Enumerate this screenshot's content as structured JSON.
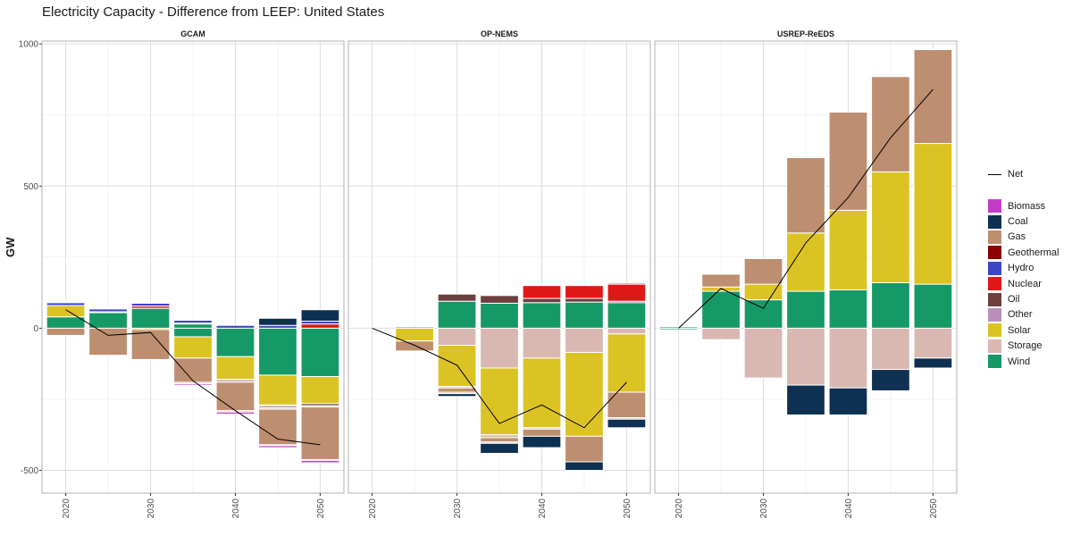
{
  "title": "Electricity Capacity - Difference from LEEP: United States",
  "chart_data": {
    "type": "bar",
    "stacked": true,
    "ylabel": "GW",
    "right_strip": "ww",
    "ylim": [
      -580,
      1010
    ],
    "yticks": [
      -500,
      0,
      500,
      1000
    ],
    "xticks": [
      2020,
      2030,
      2040,
      2050
    ],
    "grid": true,
    "legend_position": "right",
    "line_legend": "Net",
    "technologies": [
      {
        "name": "Biomass",
        "color": "#C23CC7"
      },
      {
        "name": "Coal",
        "color": "#0E3051"
      },
      {
        "name": "Gas",
        "color": "#BD8E70"
      },
      {
        "name": "Geothermal",
        "color": "#8B0000"
      },
      {
        "name": "Hydro",
        "color": "#3C45C3"
      },
      {
        "name": "Nuclear",
        "color": "#E01717"
      },
      {
        "name": "Oil",
        "color": "#6E3F3F"
      },
      {
        "name": "Other",
        "color": "#B88FBB"
      },
      {
        "name": "Solar",
        "color": "#DBC323"
      },
      {
        "name": "Storage",
        "color": "#D9B8B2"
      },
      {
        "name": "Wind",
        "color": "#159966"
      }
    ],
    "panels": [
      {
        "name": "GCAM",
        "years": [
          2020,
          2025,
          2030,
          2035,
          2040,
          2045,
          2050
        ],
        "net": [
          65,
          -25,
          -15,
          -185,
          -290,
          -390,
          -410
        ],
        "stacks": [
          {
            "pos": [
              [
                "Wind",
                40
              ],
              [
                "Solar",
                40
              ],
              [
                "Hydro",
                10
              ],
              [
                "Coal",
                3
              ],
              [
                "Nuclear",
                3
              ],
              [
                "Biomass",
                3
              ]
            ],
            "neg": [
              [
                "Gas",
                -25
              ]
            ]
          },
          {
            "pos": [
              [
                "Wind",
                55
              ],
              [
                "Solar",
                3
              ],
              [
                "Hydro",
                10
              ],
              [
                "Biomass",
                3
              ]
            ],
            "neg": [
              [
                "Gas",
                -95
              ]
            ]
          },
          {
            "pos": [
              [
                "Wind",
                70
              ],
              [
                "Nuclear",
                8
              ],
              [
                "Hydro",
                10
              ],
              [
                "Biomass",
                3
              ]
            ],
            "neg": [
              [
                "Solar",
                -5
              ],
              [
                "Gas",
                -105
              ]
            ]
          },
          {
            "pos": [
              [
                "Wind",
                15
              ],
              [
                "Nuclear",
                3
              ],
              [
                "Hydro",
                10
              ]
            ],
            "neg": [
              [
                "Wind",
                -30
              ],
              [
                "Solar",
                -75
              ],
              [
                "Gas",
                -85
              ],
              [
                "Storage",
                -5
              ],
              [
                "Biomass",
                -5
              ]
            ]
          },
          {
            "pos": [
              [
                "Hydro",
                10
              ]
            ],
            "neg": [
              [
                "Wind",
                -100
              ],
              [
                "Solar",
                -80
              ],
              [
                "Storage",
                -10
              ],
              [
                "Gas",
                -100
              ],
              [
                "Storage",
                -5
              ],
              [
                "Biomass",
                -7
              ]
            ]
          },
          {
            "pos": [
              [
                "Hydro",
                10
              ],
              [
                "Coal",
                25
              ]
            ],
            "neg": [
              [
                "Wind",
                -165
              ],
              [
                "Solar",
                -105
              ],
              [
                "Storage",
                -5
              ],
              [
                "Oil",
                -5
              ],
              [
                "Storage",
                -5
              ],
              [
                "Gas",
                -125
              ],
              [
                "Storage",
                -3
              ],
              [
                "Biomass",
                -7
              ]
            ]
          },
          {
            "pos": [
              [
                "Nuclear",
                15
              ],
              [
                "Hydro",
                10
              ],
              [
                "Coal",
                40
              ]
            ],
            "neg": [
              [
                "Wind",
                -170
              ],
              [
                "Solar",
                -95
              ],
              [
                "Oil",
                -7
              ],
              [
                "Storage",
                -5
              ],
              [
                "Gas",
                -185
              ],
              [
                "Storage",
                -3
              ],
              [
                "Biomass",
                -8
              ]
            ]
          }
        ]
      },
      {
        "name": "OP-NEMS",
        "years": [
          2020,
          2025,
          2030,
          2035,
          2040,
          2045,
          2050
        ],
        "net": [
          0,
          -60,
          -130,
          -335,
          -270,
          -350,
          -190
        ],
        "stacks": [
          {
            "pos": [],
            "neg": []
          },
          {
            "pos": [
              [
                "Wind",
                5
              ],
              [
                "Storage",
                2
              ]
            ],
            "neg": [
              [
                "Solar",
                -45
              ],
              [
                "Gas",
                -35
              ]
            ]
          },
          {
            "pos": [
              [
                "Wind",
                95
              ],
              [
                "Oil",
                25
              ]
            ],
            "neg": [
              [
                "Storage",
                -60
              ],
              [
                "Solar",
                -145
              ],
              [
                "Storage",
                -5
              ],
              [
                "Gas",
                -15
              ],
              [
                "Storage",
                -5
              ],
              [
                "Coal",
                -10
              ]
            ]
          },
          {
            "pos": [
              [
                "Wind",
                88
              ],
              [
                "Oil",
                27
              ]
            ],
            "neg": [
              [
                "Storage",
                -140
              ],
              [
                "Solar",
                -235
              ],
              [
                "Storage",
                -10
              ],
              [
                "Gas",
                -15
              ],
              [
                "Storage",
                -5
              ],
              [
                "Coal",
                -35
              ]
            ]
          },
          {
            "pos": [
              [
                "Wind",
                90
              ],
              [
                "Oil",
                15
              ],
              [
                "Nuclear",
                45
              ]
            ],
            "neg": [
              [
                "Storage",
                -105
              ],
              [
                "Solar",
                -245
              ],
              [
                "Storage",
                -5
              ],
              [
                "Gas",
                -25
              ],
              [
                "Coal",
                -40
              ]
            ]
          },
          {
            "pos": [
              [
                "Wind",
                92
              ],
              [
                "Oil",
                13
              ],
              [
                "Nuclear",
                45
              ]
            ],
            "neg": [
              [
                "Storage",
                -85
              ],
              [
                "Solar",
                -295
              ],
              [
                "Gas",
                -90
              ],
              [
                "Coal",
                -30
              ]
            ]
          },
          {
            "pos": [
              [
                "Wind",
                90
              ],
              [
                "Oil",
                5
              ],
              [
                "Nuclear",
                60
              ],
              [
                "Other",
                5
              ]
            ],
            "neg": [
              [
                "Storage",
                -20
              ],
              [
                "Solar",
                -205
              ],
              [
                "Gas",
                -90
              ],
              [
                "Storage",
                -5
              ],
              [
                "Coal",
                -30
              ]
            ]
          }
        ]
      },
      {
        "name": "USREP-ReEDS",
        "years": [
          2020,
          2025,
          2030,
          2035,
          2040,
          2045,
          2050
        ],
        "net": [
          0,
          140,
          70,
          300,
          460,
          670,
          840
        ],
        "stacks": [
          {
            "pos": [
              [
                "Wind",
                5
              ]
            ],
            "neg": [
              [
                "Wind",
                -5
              ]
            ]
          },
          {
            "pos": [
              [
                "Wind",
                130
              ],
              [
                "Solar",
                15
              ],
              [
                "Gas",
                45
              ]
            ],
            "neg": [
              [
                "Storage",
                -40
              ]
            ]
          },
          {
            "pos": [
              [
                "Wind",
                100
              ],
              [
                "Solar",
                55
              ],
              [
                "Gas",
                90
              ]
            ],
            "neg": [
              [
                "Storage",
                -175
              ]
            ]
          },
          {
            "pos": [
              [
                "Wind",
                130
              ],
              [
                "Solar",
                205
              ],
              [
                "Gas",
                265
              ]
            ],
            "neg": [
              [
                "Storage",
                -200
              ],
              [
                "Coal",
                -105
              ]
            ]
          },
          {
            "pos": [
              [
                "Wind",
                135
              ],
              [
                "Solar",
                280
              ],
              [
                "Gas",
                345
              ]
            ],
            "neg": [
              [
                "Storage",
                -210
              ],
              [
                "Coal",
                -95
              ]
            ]
          },
          {
            "pos": [
              [
                "Wind",
                160
              ],
              [
                "Solar",
                390
              ],
              [
                "Gas",
                335
              ]
            ],
            "neg": [
              [
                "Storage",
                -145
              ],
              [
                "Coal",
                -75
              ]
            ]
          },
          {
            "pos": [
              [
                "Wind",
                155
              ],
              [
                "Solar",
                495
              ],
              [
                "Gas",
                330
              ]
            ],
            "neg": [
              [
                "Storage",
                -105
              ],
              [
                "Coal",
                -35
              ]
            ]
          }
        ]
      }
    ]
  }
}
